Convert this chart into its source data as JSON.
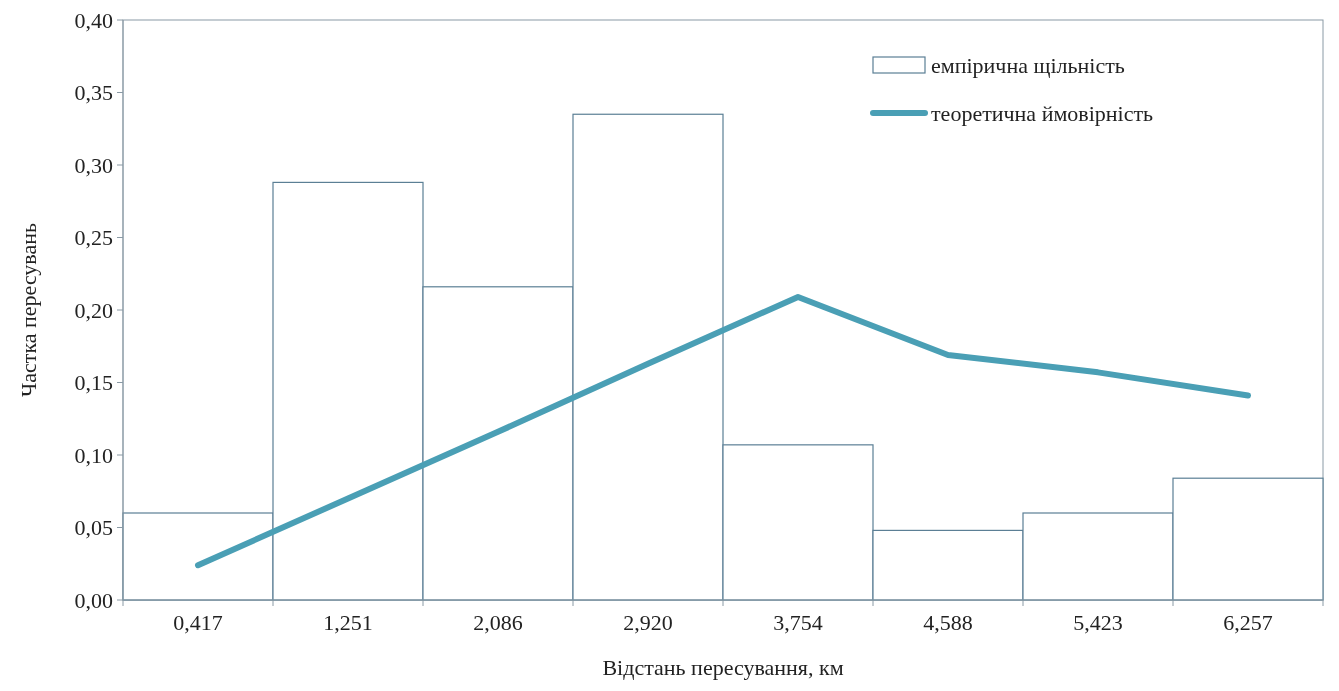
{
  "chart_data": {
    "type": "bar",
    "xlabel": "Відстань пересування, км",
    "ylabel": "Частка пересувань",
    "categories": [
      "0,417",
      "1,251",
      "2,086",
      "2,920",
      "3,754",
      "4,588",
      "5,423",
      "6,257"
    ],
    "series": [
      {
        "name": "емпірична щільність",
        "color": "#ffffff",
        "values": [
          0.06,
          0.288,
          0.216,
          0.335,
          0.107,
          0.048,
          0.06,
          0.084
        ]
      },
      {
        "name": "теоретична ймовірність",
        "type": "line",
        "color": "#4a9fb5",
        "values": [
          0.024,
          0.07,
          0.116,
          0.163,
          0.209,
          0.169,
          0.157,
          0.141
        ]
      }
    ],
    "ylim": [
      0,
      0.4
    ],
    "yticks": [
      {
        "value": 0,
        "label": "0,00"
      },
      {
        "value": 0.05,
        "label": "0,05"
      },
      {
        "value": 0.1,
        "label": "0,10"
      },
      {
        "value": 0.15,
        "label": "0,15"
      },
      {
        "value": 0.2,
        "label": "0,20"
      },
      {
        "value": 0.25,
        "label": "0,25"
      },
      {
        "value": 0.3,
        "label": "0,30"
      },
      {
        "value": 0.35,
        "label": "0,35"
      },
      {
        "value": 0.4,
        "label": "0,40"
      }
    ],
    "grid": false,
    "legend": "top right"
  }
}
